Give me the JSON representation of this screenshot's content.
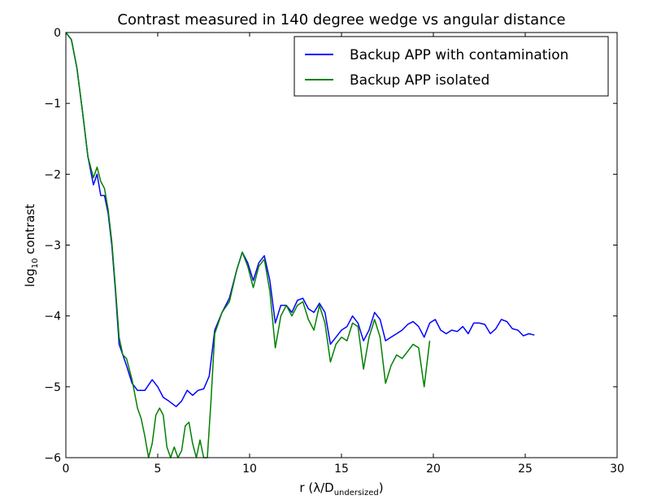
{
  "chart_data": {
    "type": "line",
    "title": "Contrast measured in 140 degree wedge vs angular distance",
    "xlabel": "r (λ/D",
    "xlabel_subscript": "undersized",
    "xlabel_close": ")",
    "ylabel": "log",
    "ylabel_subscript": "10",
    "ylabel_rest": " contrast",
    "xlim": [
      0,
      30
    ],
    "ylim": [
      -6,
      0
    ],
    "xticks": [
      0,
      5,
      10,
      15,
      20,
      25,
      30
    ],
    "xtick_labels": [
      "0",
      "5",
      "10",
      "15",
      "20",
      "25",
      "30"
    ],
    "yticks": [
      0,
      -1,
      -2,
      -3,
      -4,
      -5,
      -6
    ],
    "ytick_labels": [
      "0",
      "−1",
      "−2",
      "−3",
      "−4",
      "−5",
      "−6"
    ],
    "grid": false,
    "legend_position": "top-right",
    "series": [
      {
        "name": "Backup APP with contamination",
        "color": "#0000ff",
        "x": [
          0,
          0.3,
          0.6,
          0.9,
          1.2,
          1.5,
          1.7,
          1.9,
          2.1,
          2.3,
          2.5,
          2.7,
          2.9,
          3.1,
          3.3,
          3.6,
          3.9,
          4.3,
          4.7,
          5.0,
          5.3,
          5.6,
          6.0,
          6.3,
          6.6,
          6.9,
          7.2,
          7.5,
          7.8,
          8.1,
          8.5,
          8.9,
          9.3,
          9.6,
          9.9,
          10.2,
          10.5,
          10.8,
          11.1,
          11.4,
          11.7,
          12.0,
          12.3,
          12.6,
          12.9,
          13.2,
          13.5,
          13.8,
          14.1,
          14.4,
          14.7,
          15.0,
          15.3,
          15.6,
          15.9,
          16.2,
          16.5,
          16.8,
          17.1,
          17.4,
          17.7,
          18.0,
          18.3,
          18.6,
          18.9,
          19.2,
          19.5,
          19.8,
          20.1,
          20.4,
          20.7,
          21.0,
          21.3,
          21.6,
          21.9,
          22.2,
          22.5,
          22.8,
          23.1,
          23.4,
          23.7,
          24.0,
          24.3,
          24.6,
          24.9,
          25.2,
          25.5
        ],
        "y": [
          0,
          -0.1,
          -0.5,
          -1.1,
          -1.75,
          -2.15,
          -2.0,
          -2.3,
          -2.3,
          -2.55,
          -3.0,
          -3.65,
          -4.4,
          -4.55,
          -4.7,
          -4.95,
          -5.05,
          -5.05,
          -4.9,
          -5.0,
          -5.15,
          -5.2,
          -5.28,
          -5.2,
          -5.05,
          -5.12,
          -5.05,
          -5.03,
          -4.85,
          -4.2,
          -3.95,
          -3.75,
          -3.35,
          -3.1,
          -3.25,
          -3.5,
          -3.25,
          -3.15,
          -3.5,
          -4.1,
          -3.85,
          -3.85,
          -3.95,
          -3.78,
          -3.75,
          -3.9,
          -3.95,
          -3.82,
          -3.95,
          -4.4,
          -4.3,
          -4.2,
          -4.15,
          -4.0,
          -4.1,
          -4.35,
          -4.2,
          -3.95,
          -4.05,
          -4.35,
          -4.3,
          -4.25,
          -4.2,
          -4.12,
          -4.08,
          -4.15,
          -4.3,
          -4.1,
          -4.05,
          -4.2,
          -4.25,
          -4.2,
          -4.22,
          -4.15,
          -4.25,
          -4.1,
          -4.1,
          -4.12,
          -4.25,
          -4.18,
          -4.05,
          -4.08,
          -4.18,
          -4.2,
          -4.28,
          -4.25,
          -4.27
        ]
      },
      {
        "name": "Backup APP isolated",
        "color": "#008000",
        "x": [
          0,
          0.3,
          0.6,
          0.9,
          1.2,
          1.5,
          1.7,
          1.9,
          2.1,
          2.3,
          2.5,
          2.7,
          2.9,
          3.1,
          3.3,
          3.6,
          3.9,
          4.1,
          4.3,
          4.5,
          4.7,
          4.9,
          5.1,
          5.3,
          5.5,
          5.7,
          5.9,
          6.1,
          6.3,
          6.5,
          6.7,
          6.9,
          7.1,
          7.3,
          7.5,
          7.7,
          7.9,
          8.1,
          8.5,
          8.9,
          9.3,
          9.6,
          9.9,
          10.2,
          10.5,
          10.8,
          11.1,
          11.4,
          11.7,
          12.0,
          12.3,
          12.6,
          12.9,
          13.2,
          13.5,
          13.8,
          14.1,
          14.4,
          14.7,
          15.0,
          15.3,
          15.6,
          15.9,
          16.2,
          16.5,
          16.8,
          17.1,
          17.4,
          17.7,
          18.0,
          18.3,
          18.6,
          18.9,
          19.2,
          19.5,
          19.8
        ],
        "y": [
          0,
          -0.1,
          -0.5,
          -1.1,
          -1.75,
          -2.05,
          -1.9,
          -2.1,
          -2.2,
          -2.5,
          -2.95,
          -3.6,
          -4.3,
          -4.55,
          -4.6,
          -4.9,
          -5.3,
          -5.45,
          -5.7,
          -6.0,
          -5.8,
          -5.4,
          -5.3,
          -5.4,
          -5.85,
          -6.0,
          -5.85,
          -6.0,
          -5.9,
          -5.55,
          -5.5,
          -5.8,
          -6.0,
          -5.75,
          -6.0,
          -6.0,
          -5.2,
          -4.25,
          -3.95,
          -3.8,
          -3.35,
          -3.1,
          -3.3,
          -3.6,
          -3.3,
          -3.2,
          -3.65,
          -4.45,
          -4.0,
          -3.85,
          -4.0,
          -3.85,
          -3.8,
          -4.05,
          -4.2,
          -3.85,
          -4.1,
          -4.65,
          -4.4,
          -4.3,
          -4.35,
          -4.1,
          -4.15,
          -4.75,
          -4.3,
          -4.05,
          -4.3,
          -4.95,
          -4.7,
          -4.55,
          -4.6,
          -4.5,
          -4.4,
          -4.45,
          -5.0,
          -4.35
        ]
      }
    ]
  }
}
